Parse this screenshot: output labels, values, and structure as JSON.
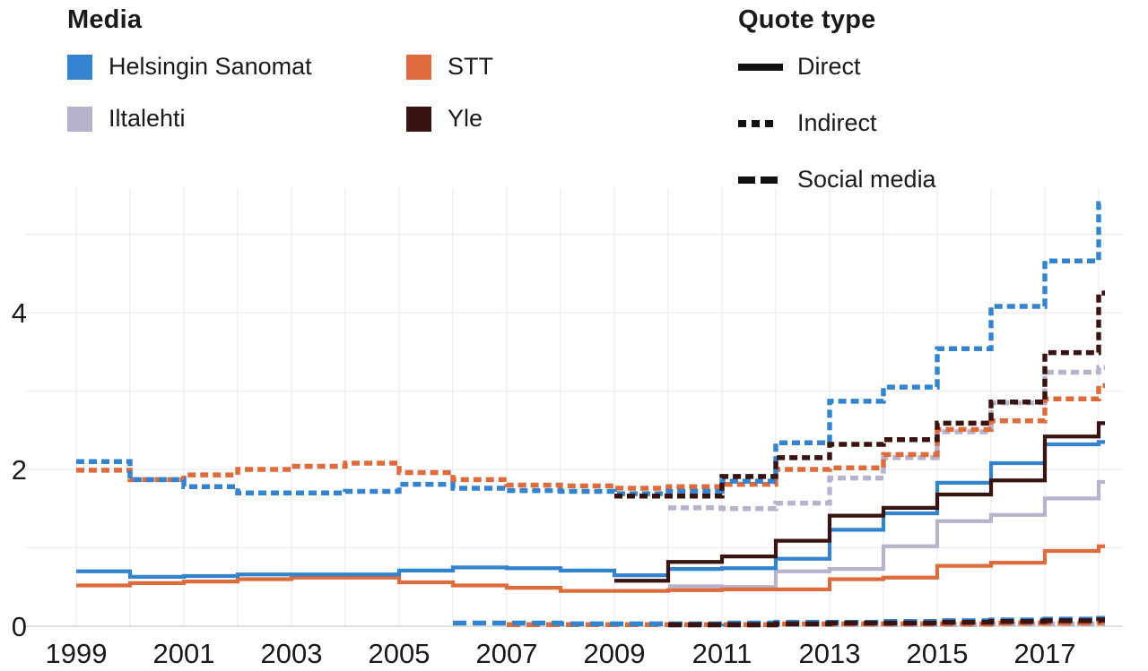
{
  "legend_media": {
    "title": "Media",
    "items": [
      {
        "label": "Helsingin Sanomat",
        "color": "#3383cf"
      },
      {
        "label": "STT",
        "color": "#dd6b3c"
      },
      {
        "label": "Iltalehti",
        "color": "#b7b3cf"
      },
      {
        "label": "Yle",
        "color": "#381310"
      }
    ]
  },
  "legend_quote": {
    "title": "Quote type",
    "items": [
      {
        "label": "Direct",
        "style": "solid"
      },
      {
        "label": "Indirect",
        "style": "dotted"
      },
      {
        "label": "Social media",
        "style": "dashed"
      }
    ]
  },
  "axes": {
    "x_tick_years": [
      1999,
      2001,
      2003,
      2005,
      2007,
      2009,
      2011,
      2013,
      2015,
      2017
    ],
    "x_gridline_years": [
      1999,
      2000,
      2001,
      2002,
      2003,
      2004,
      2005,
      2006,
      2007,
      2008,
      2009,
      2010,
      2011,
      2012,
      2013,
      2014,
      2015,
      2016,
      2017,
      2018
    ],
    "y_tick_values": [
      0,
      2,
      4
    ],
    "y_gridline_values": [
      0,
      1,
      2,
      3,
      4,
      5
    ],
    "x_range": [
      1998.2,
      2018.45
    ],
    "y_range": [
      0,
      5.6
    ],
    "grid_color": "#ebebeb",
    "zero_line_color": "#d6d6d6",
    "label_color": "#1a1a1a"
  },
  "chart_data": {
    "type": "line",
    "subtype": "step-post",
    "title": "",
    "xlabel": "",
    "ylabel": "",
    "x_unit": "year",
    "legend_position": "top",
    "grid": true,
    "series": [
      {
        "media": "Iltalehti",
        "quote_type": "Social media",
        "color": "#b7b3cf",
        "dash": "dashed",
        "points": [
          [
            2010,
            0.01
          ],
          [
            2011,
            0.01
          ],
          [
            2012,
            0.02
          ],
          [
            2013,
            0.02
          ],
          [
            2014,
            0.02
          ],
          [
            2015,
            0.02
          ],
          [
            2016,
            0.03
          ],
          [
            2017,
            0.03
          ],
          [
            2018,
            0.03
          ]
        ]
      },
      {
        "media": "Iltalehti",
        "quote_type": "Indirect",
        "color": "#b7b3cf",
        "dash": "dotted",
        "points": [
          [
            2010,
            1.51
          ],
          [
            2011,
            1.5
          ],
          [
            2012,
            1.57
          ],
          [
            2013,
            1.89
          ],
          [
            2014,
            2.15
          ],
          [
            2015,
            2.48
          ],
          [
            2016,
            2.85
          ],
          [
            2017,
            3.24
          ],
          [
            2018,
            3.3
          ]
        ]
      },
      {
        "media": "Iltalehti",
        "quote_type": "Direct",
        "color": "#b7b3cf",
        "dash": "solid",
        "points": [
          [
            2010,
            0.51
          ],
          [
            2011,
            0.5
          ],
          [
            2012,
            0.7
          ],
          [
            2013,
            0.73
          ],
          [
            2014,
            1.02
          ],
          [
            2015,
            1.34
          ],
          [
            2016,
            1.42
          ],
          [
            2017,
            1.63
          ],
          [
            2018,
            1.84
          ]
        ]
      },
      {
        "media": "STT",
        "quote_type": "Social media",
        "color": "#dd6b3c",
        "dash": "dashed",
        "points": [
          [
            2007,
            0.02
          ],
          [
            2008,
            0.02
          ],
          [
            2009,
            0.02
          ],
          [
            2010,
            0.02
          ],
          [
            2011,
            0.02
          ],
          [
            2012,
            0.03
          ],
          [
            2013,
            0.03
          ],
          [
            2014,
            0.03
          ],
          [
            2015,
            0.03
          ],
          [
            2016,
            0.04
          ],
          [
            2017,
            0.04
          ],
          [
            2018,
            0.05
          ]
        ]
      },
      {
        "media": "STT",
        "quote_type": "Indirect",
        "color": "#dd6b3c",
        "dash": "dotted",
        "points": [
          [
            1999,
            1.99
          ],
          [
            2000,
            1.87
          ],
          [
            2001,
            1.93
          ],
          [
            2002,
            2.0
          ],
          [
            2003,
            2.04
          ],
          [
            2004,
            2.08
          ],
          [
            2005,
            1.96
          ],
          [
            2006,
            1.87
          ],
          [
            2007,
            1.8
          ],
          [
            2008,
            1.79
          ],
          [
            2009,
            1.76
          ],
          [
            2010,
            1.78
          ],
          [
            2011,
            1.81
          ],
          [
            2012,
            2.0
          ],
          [
            2013,
            2.02
          ],
          [
            2014,
            2.19
          ],
          [
            2015,
            2.51
          ],
          [
            2016,
            2.62
          ],
          [
            2017,
            2.9
          ],
          [
            2018,
            3.07
          ]
        ]
      },
      {
        "media": "STT",
        "quote_type": "Direct",
        "color": "#dd6b3c",
        "dash": "solid",
        "points": [
          [
            1999,
            0.52
          ],
          [
            2000,
            0.55
          ],
          [
            2001,
            0.57
          ],
          [
            2002,
            0.6
          ],
          [
            2003,
            0.62
          ],
          [
            2004,
            0.62
          ],
          [
            2005,
            0.56
          ],
          [
            2006,
            0.52
          ],
          [
            2007,
            0.49
          ],
          [
            2008,
            0.45
          ],
          [
            2009,
            0.45
          ],
          [
            2010,
            0.46
          ],
          [
            2011,
            0.47
          ],
          [
            2012,
            0.47
          ],
          [
            2013,
            0.6
          ],
          [
            2014,
            0.62
          ],
          [
            2015,
            0.77
          ],
          [
            2016,
            0.81
          ],
          [
            2017,
            0.96
          ],
          [
            2018,
            1.02
          ]
        ]
      },
      {
        "media": "Helsingin Sanomat",
        "quote_type": "Social media",
        "color": "#3383cf",
        "dash": "dashed",
        "points": [
          [
            2006,
            0.04
          ],
          [
            2007,
            0.04
          ],
          [
            2008,
            0.03
          ],
          [
            2009,
            0.03
          ],
          [
            2010,
            0.03
          ],
          [
            2011,
            0.04
          ],
          [
            2012,
            0.05
          ],
          [
            2013,
            0.05
          ],
          [
            2014,
            0.06
          ],
          [
            2015,
            0.07
          ],
          [
            2016,
            0.08
          ],
          [
            2017,
            0.09
          ],
          [
            2018,
            0.1
          ]
        ]
      },
      {
        "media": "Helsingin Sanomat",
        "quote_type": "Indirect",
        "color": "#3383cf",
        "dash": "dotted",
        "points": [
          [
            1999,
            2.1
          ],
          [
            2000,
            1.87
          ],
          [
            2001,
            1.78
          ],
          [
            2002,
            1.7
          ],
          [
            2003,
            1.7
          ],
          [
            2004,
            1.72
          ],
          [
            2005,
            1.81
          ],
          [
            2006,
            1.76
          ],
          [
            2007,
            1.73
          ],
          [
            2008,
            1.72
          ],
          [
            2009,
            1.69
          ],
          [
            2010,
            1.72
          ],
          [
            2011,
            1.85
          ],
          [
            2012,
            2.34
          ],
          [
            2013,
            2.87
          ],
          [
            2014,
            3.05
          ],
          [
            2015,
            3.54
          ],
          [
            2016,
            4.08
          ],
          [
            2017,
            4.66
          ],
          [
            2018,
            5.39
          ]
        ]
      },
      {
        "media": "Helsingin Sanomat",
        "quote_type": "Direct",
        "color": "#3383cf",
        "dash": "solid",
        "points": [
          [
            1999,
            0.7
          ],
          [
            2000,
            0.63
          ],
          [
            2001,
            0.64
          ],
          [
            2002,
            0.66
          ],
          [
            2003,
            0.66
          ],
          [
            2004,
            0.66
          ],
          [
            2005,
            0.71
          ],
          [
            2006,
            0.75
          ],
          [
            2007,
            0.74
          ],
          [
            2008,
            0.71
          ],
          [
            2009,
            0.65
          ],
          [
            2010,
            0.73
          ],
          [
            2011,
            0.74
          ],
          [
            2012,
            0.86
          ],
          [
            2013,
            1.23
          ],
          [
            2014,
            1.44
          ],
          [
            2015,
            1.83
          ],
          [
            2016,
            2.08
          ],
          [
            2017,
            2.32
          ],
          [
            2018,
            2.35
          ]
        ]
      },
      {
        "media": "Yle",
        "quote_type": "Social media",
        "color": "#381310",
        "dash": "dashed",
        "points": [
          [
            2010,
            0.02
          ],
          [
            2011,
            0.02
          ],
          [
            2012,
            0.03
          ],
          [
            2013,
            0.04
          ],
          [
            2014,
            0.04
          ],
          [
            2015,
            0.05
          ],
          [
            2016,
            0.06
          ],
          [
            2017,
            0.07
          ],
          [
            2018,
            0.08
          ]
        ]
      },
      {
        "media": "Yle",
        "quote_type": "Indirect",
        "color": "#381310",
        "dash": "dotted",
        "points": [
          [
            2009,
            1.66
          ],
          [
            2010,
            1.66
          ],
          [
            2011,
            1.91
          ],
          [
            2012,
            2.15
          ],
          [
            2013,
            2.32
          ],
          [
            2014,
            2.38
          ],
          [
            2015,
            2.59
          ],
          [
            2016,
            2.86
          ],
          [
            2017,
            3.49
          ],
          [
            2018,
            4.25
          ]
        ]
      },
      {
        "media": "Yle",
        "quote_type": "Direct",
        "color": "#381310",
        "dash": "solid",
        "points": [
          [
            2009,
            0.58
          ],
          [
            2010,
            0.82
          ],
          [
            2011,
            0.89
          ],
          [
            2012,
            1.09
          ],
          [
            2013,
            1.41
          ],
          [
            2014,
            1.51
          ],
          [
            2015,
            1.68
          ],
          [
            2016,
            1.86
          ],
          [
            2017,
            2.42
          ],
          [
            2018,
            2.59
          ]
        ]
      }
    ]
  }
}
